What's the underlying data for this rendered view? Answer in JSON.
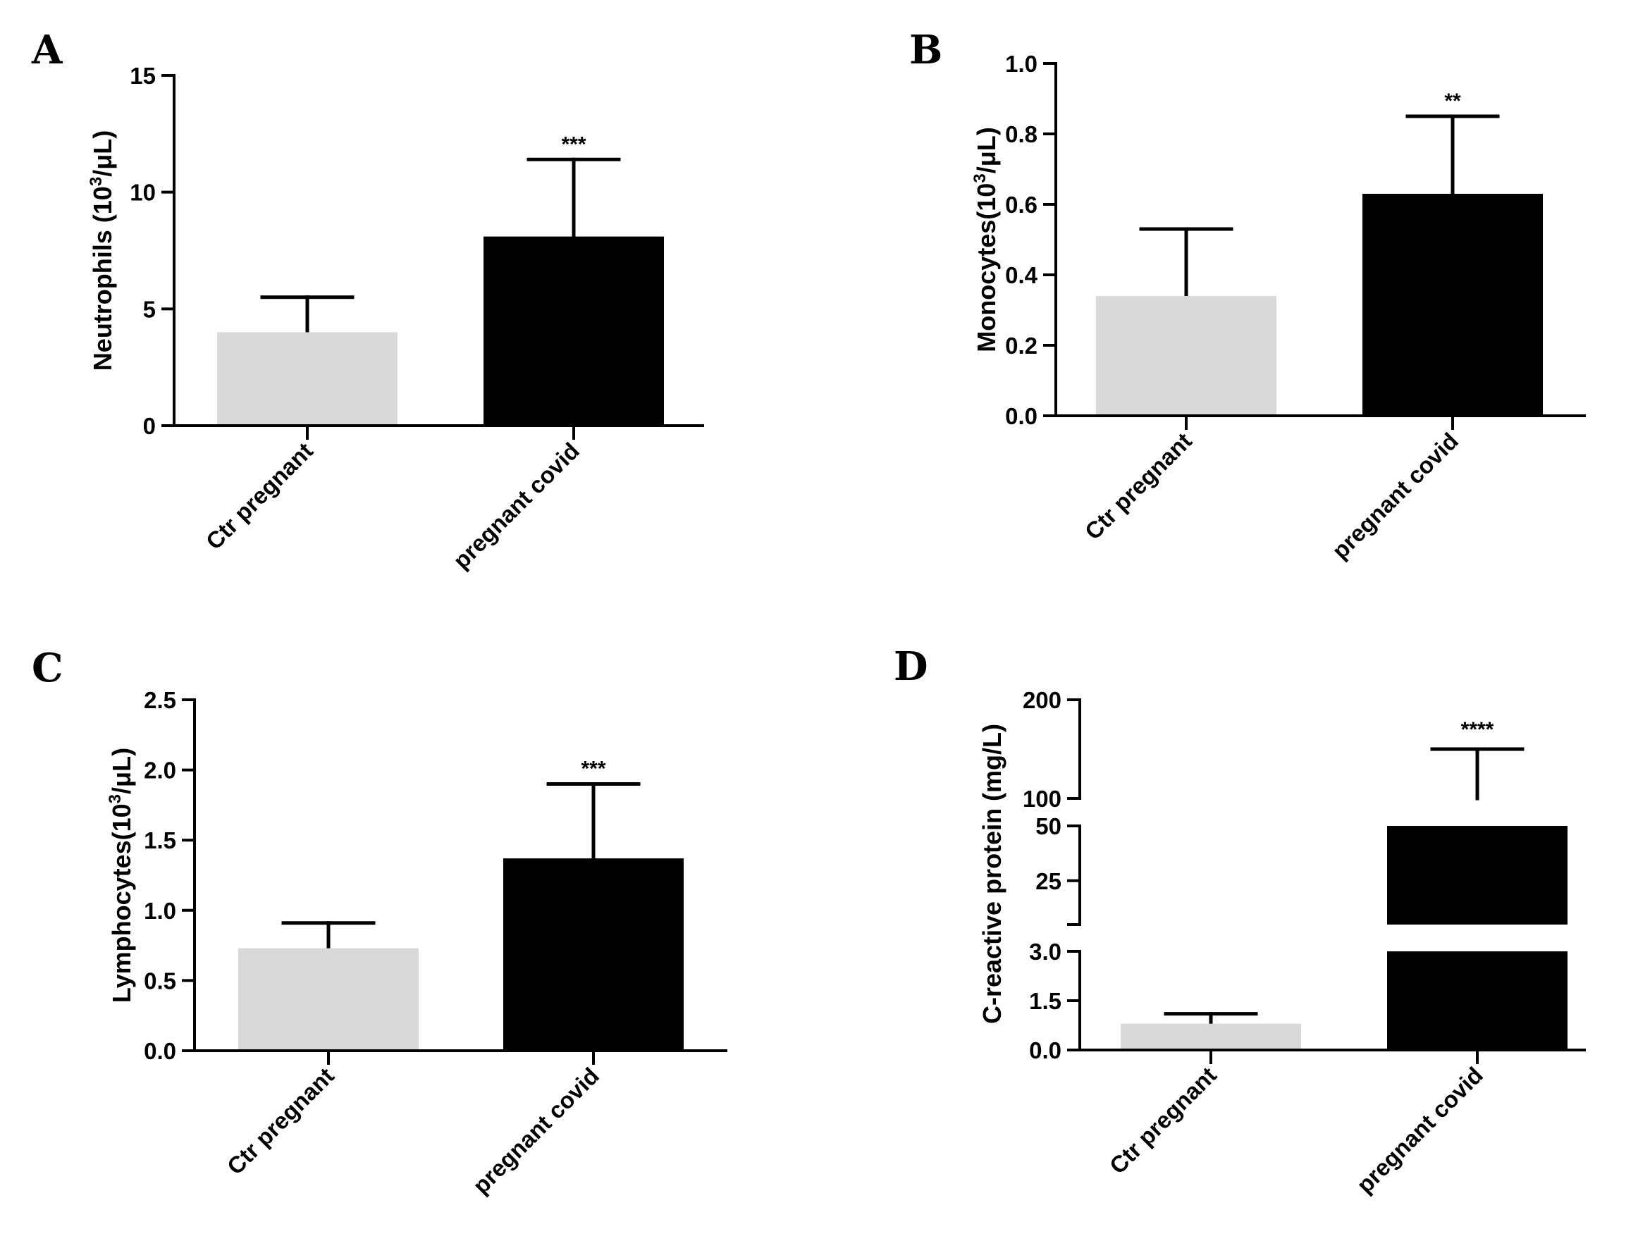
{
  "figure_colors": {
    "control": "#d9d9d9",
    "covid": "#000000",
    "axis": "#000000"
  },
  "chart_data": [
    {
      "panel": "A",
      "type": "bar",
      "categories": [
        "Ctr pregnant",
        "pregnant covid"
      ],
      "values": [
        4.0,
        8.1
      ],
      "error_upper": [
        5.5,
        11.4
      ],
      "significance": [
        "",
        "***"
      ],
      "ylabel_parts": [
        "Neutrophils (10",
        "3",
        "/μL)"
      ],
      "ylim": [
        0,
        15
      ],
      "yticks": [
        0,
        5,
        10,
        15
      ],
      "ytick_labels": [
        "0",
        "5",
        "10",
        "15"
      ]
    },
    {
      "panel": "B",
      "type": "bar",
      "categories": [
        "Ctr pregnant",
        "pregnant covid"
      ],
      "values": [
        0.34,
        0.63
      ],
      "error_upper": [
        0.53,
        0.85
      ],
      "significance": [
        "",
        "**"
      ],
      "ylabel_parts": [
        "Monocytes(10",
        "3",
        "/μL)"
      ],
      "ylim": [
        0,
        1.0
      ],
      "yticks": [
        0,
        0.2,
        0.4,
        0.6,
        0.8,
        1.0
      ],
      "ytick_labels": [
        "0.0",
        "0.2",
        "0.4",
        "0.6",
        "0.8",
        "1.0"
      ]
    },
    {
      "panel": "C",
      "type": "bar",
      "categories": [
        "Ctr pregnant",
        "pregnant covid"
      ],
      "values": [
        0.73,
        1.37
      ],
      "error_upper": [
        0.91,
        1.9
      ],
      "significance": [
        "",
        "***"
      ],
      "ylabel_parts": [
        "Lymphocytes(10",
        "3",
        "/μL)"
      ],
      "ylim": [
        0,
        2.5
      ],
      "yticks": [
        0,
        0.5,
        1.0,
        1.5,
        2.0,
        2.5
      ],
      "ytick_labels": [
        "0.0",
        "0.5",
        "1.0",
        "1.5",
        "2.0",
        "2.5"
      ]
    },
    {
      "panel": "D",
      "type": "bar",
      "categories": [
        "Ctr pregnant",
        "pregnant covid"
      ],
      "values": [
        0.8,
        50
      ],
      "error_upper": [
        1.1,
        150
      ],
      "significance": [
        "",
        "****"
      ],
      "ylabel_parts": [
        "C-reactive protein (mg/L)",
        "",
        ""
      ],
      "axis_segments": [
        {
          "range": [
            0,
            3.0
          ],
          "ticks": [
            0,
            1.5,
            3.0
          ],
          "tick_labels": [
            "0.0",
            "1.5",
            "3.0"
          ]
        },
        {
          "range": [
            5,
            50
          ],
          "ticks": [
            25,
            50
          ],
          "tick_labels": [
            "25",
            "50"
          ]
        },
        {
          "range": [
            100,
            200
          ],
          "ticks": [
            100,
            200
          ],
          "tick_labels": [
            "100",
            "200"
          ]
        }
      ]
    }
  ]
}
